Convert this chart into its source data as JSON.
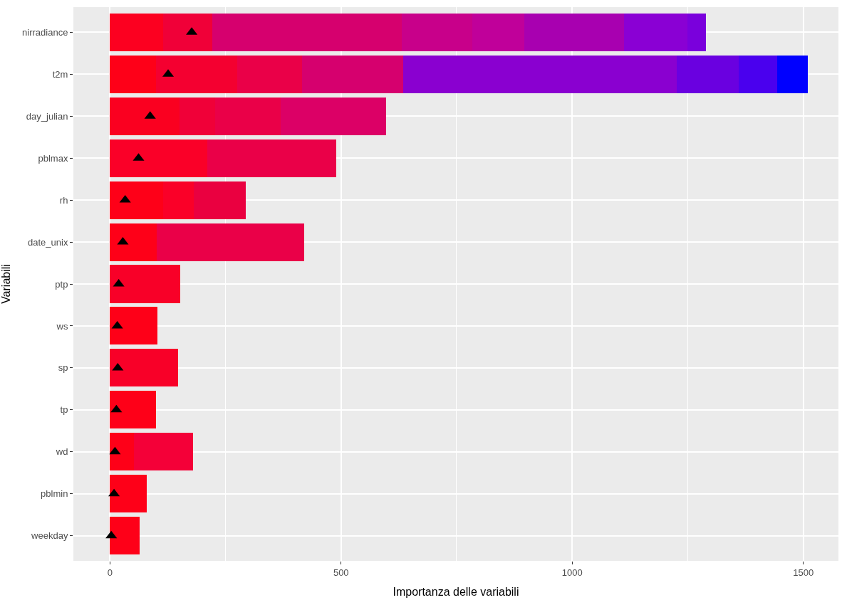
{
  "chart_data": {
    "type": "bar",
    "orientation": "horizontal",
    "stacked": true,
    "xlabel": "Importanza delle variabili",
    "ylabel": "Variabili",
    "categories": [
      "nirradiance",
      "t2m",
      "day_julian",
      "pblmax",
      "rh",
      "date_unix",
      "ptp",
      "ws",
      "sp",
      "tp",
      "wd",
      "pblmin",
      "weekday"
    ],
    "xlim": [
      -79,
      1576
    ],
    "xticks": [
      0,
      500,
      1000,
      1500
    ],
    "grid": true,
    "series": [
      {
        "values": [
          115,
          99,
          150,
          211,
          115,
          101,
          152,
          103,
          148,
          99,
          52,
          80,
          64
        ],
        "colors": [
          "#fc0020",
          "#fe0018",
          "#fa0020",
          "#fa0028",
          "#fe0018",
          "#fe0018",
          "#f80028",
          "#fe0018",
          "#f80028",
          "#fe0018",
          "#fe0018",
          "#fe0018",
          "#fe0018"
        ]
      },
      {
        "values": [
          106,
          177,
          77,
          278,
          66,
          319,
          null,
          null,
          null,
          null,
          128,
          null,
          null
        ],
        "colors": [
          "#f00038",
          "#f40030",
          "#f00038",
          "#ea0048",
          "#fa0028",
          "#ea0048",
          null,
          null,
          null,
          null,
          "#f40038",
          null,
          null
        ]
      },
      {
        "values": [
          410,
          139,
          143,
          null,
          113,
          null,
          null,
          null,
          null,
          null,
          null,
          null,
          null
        ],
        "colors": [
          "#d6006e",
          "#ea0048",
          "#ea0048",
          null,
          "#ea0040",
          null,
          null,
          null,
          null,
          null,
          null,
          null,
          null
        ]
      },
      {
        "values": [
          153,
          220,
          227,
          null,
          null,
          null,
          null,
          null,
          null,
          null,
          null,
          null,
          null
        ],
        "colors": [
          "#c8008a",
          "#d6006e",
          "#dc0066",
          null,
          null,
          null,
          null,
          null,
          null,
          null,
          null,
          null,
          null
        ]
      },
      {
        "values": [
          113,
          591,
          null,
          null,
          null,
          null,
          null,
          null,
          null,
          null,
          null,
          null,
          null
        ],
        "colors": [
          "#c0009a",
          "#8a00d0",
          null,
          null,
          null,
          null,
          null,
          null,
          null,
          null,
          null,
          null,
          null
        ]
      },
      {
        "values": [
          215,
          134,
          null,
          null,
          null,
          null,
          null,
          null,
          null,
          null,
          null,
          null,
          null
        ],
        "colors": [
          "#a800b0",
          "#6a00e0",
          null,
          null,
          null,
          null,
          null,
          null,
          null,
          null,
          null,
          null,
          null
        ]
      },
      {
        "values": [
          137,
          83,
          null,
          null,
          null,
          null,
          null,
          null,
          null,
          null,
          null,
          null,
          null
        ],
        "colors": [
          "#8a00d4",
          "#4a00ee",
          null,
          null,
          null,
          null,
          null,
          null,
          null,
          null,
          null,
          null,
          null
        ]
      },
      {
        "values": [
          40,
          66,
          null,
          null,
          null,
          null,
          null,
          null,
          null,
          null,
          null,
          null,
          null
        ],
        "colors": [
          "#7a00dc",
          "#0000ff",
          null,
          null,
          null,
          null,
          null,
          null,
          null,
          null,
          null,
          null,
          null
        ]
      },
      {
        "type": "scatter",
        "marker": "triangle",
        "color": "#000000",
        "values": [
          177,
          126,
          87,
          62,
          33,
          28,
          19,
          16,
          17,
          14,
          11,
          9,
          3
        ]
      }
    ]
  }
}
